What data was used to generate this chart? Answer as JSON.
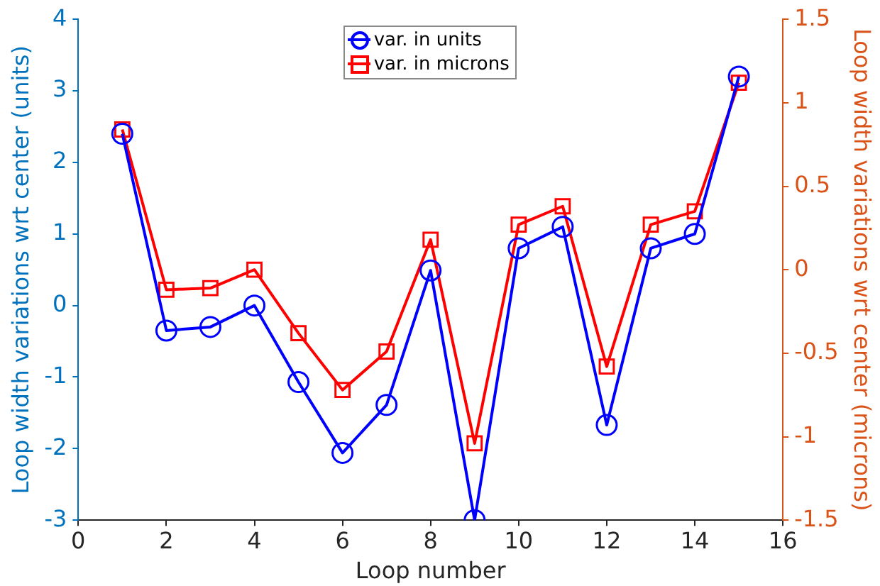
{
  "chart_data": {
    "type": "line",
    "xlabel": "Loop number",
    "ylabel": "Loop width variations wrt center (units)",
    "y2label": "Loop width variations wrt center (microns)",
    "x": [
      1,
      2,
      3,
      4,
      5,
      6,
      7,
      8,
      9,
      10,
      11,
      12,
      13,
      14,
      15
    ],
    "series": [
      {
        "name": "var. in units",
        "color": "#0000ff",
        "marker": "circle",
        "values": [
          2.4,
          -0.35,
          -0.3,
          0,
          -1.07,
          -2.06,
          -1.39,
          0.49,
          -3,
          0.8,
          1.1,
          -1.67,
          0.8,
          1.0,
          3.2
        ]
      },
      {
        "name": "var. in microns",
        "color": "#ff0000",
        "marker": "square",
        "axis": "y2",
        "values": [
          0.84,
          -0.12,
          -0.11,
          0,
          -0.38,
          -0.72,
          -0.49,
          0.18,
          -1.04,
          0.27,
          0.38,
          -0.58,
          0.27,
          0.35,
          1.12
        ]
      }
    ],
    "xlim": [
      0,
      16
    ],
    "xticks": [
      0,
      2,
      4,
      6,
      8,
      10,
      12,
      14,
      16
    ],
    "ylim": [
      -3,
      4
    ],
    "yticks": [
      -3,
      -2,
      -1,
      0,
      1,
      2,
      3,
      4
    ],
    "y2lim": [
      -1.5,
      1.5
    ],
    "y2ticks": [
      -1.5,
      -1,
      -0.5,
      0,
      0.5,
      1,
      1.5
    ],
    "legend": "top",
    "grid": false,
    "line_style": "solid"
  }
}
